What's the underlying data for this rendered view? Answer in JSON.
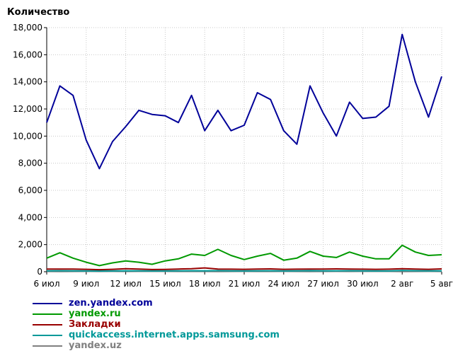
{
  "chart_data": {
    "type": "line",
    "ylabel": "Количество",
    "ylim": [
      0,
      18000
    ],
    "yticks": [
      0,
      2000,
      4000,
      6000,
      8000,
      10000,
      12000,
      14000,
      16000,
      18000
    ],
    "ytick_labels": [
      "0",
      "2,000",
      "4,000",
      "6,000",
      "8,000",
      "10,000",
      "12,000",
      "14,000",
      "16,000",
      "18,000"
    ],
    "x": [
      "6 июл",
      "7 июл",
      "8 июл",
      "9 июл",
      "10 июл",
      "11 июл",
      "12 июл",
      "13 июл",
      "14 июл",
      "15 июл",
      "16 июл",
      "17 июл",
      "18 июл",
      "19 июл",
      "20 июл",
      "21 июл",
      "22 июл",
      "23 июл",
      "24 июл",
      "25 июл",
      "26 июл",
      "27 июл",
      "28 июл",
      "29 июл",
      "30 июл",
      "31 июл",
      "1 авг",
      "2 авг",
      "3 авг",
      "4 авг",
      "5 авг"
    ],
    "xtick_labels": [
      {
        "index": 0,
        "label": "6 июл"
      },
      {
        "index": 3,
        "label": "9 июл"
      },
      {
        "index": 6,
        "label": "12 июл"
      },
      {
        "index": 9,
        "label": "15 июл"
      },
      {
        "index": 12,
        "label": "18 июл"
      },
      {
        "index": 15,
        "label": "21 июл"
      },
      {
        "index": 18,
        "label": "24 июл"
      },
      {
        "index": 21,
        "label": "27 июл"
      },
      {
        "index": 24,
        "label": "30 июл"
      },
      {
        "index": 27,
        "label": "2 авг"
      },
      {
        "index": 30,
        "label": "5 авг"
      }
    ],
    "grid": true,
    "legend_position": "bottom-left",
    "series": [
      {
        "name": "zen.yandex.com",
        "color": "#000099",
        "values": [
          11000,
          13700,
          13000,
          9700,
          7600,
          9600,
          10700,
          11900,
          11600,
          11500,
          11000,
          13000,
          10400,
          11900,
          10400,
          10800,
          13200,
          12700,
          10400,
          9400,
          13700,
          11700,
          10000,
          12500,
          11300,
          11400,
          12200,
          17500,
          14000,
          11400,
          14400
        ]
      },
      {
        "name": "yandex.ru",
        "color": "#009900",
        "values": [
          1000,
          1400,
          1000,
          700,
          450,
          650,
          800,
          700,
          550,
          800,
          950,
          1300,
          1200,
          1650,
          1200,
          900,
          1150,
          1350,
          850,
          1000,
          1500,
          1150,
          1050,
          1450,
          1150,
          950,
          950,
          1950,
          1450,
          1200,
          1250
        ]
      },
      {
        "name": "Закладки",
        "color": "#990000",
        "values": [
          200,
          200,
          200,
          180,
          150,
          180,
          220,
          200,
          160,
          170,
          200,
          220,
          280,
          200,
          190,
          180,
          200,
          210,
          180,
          190,
          200,
          200,
          210,
          200,
          190,
          180,
          190,
          220,
          200,
          180,
          210
        ]
      },
      {
        "name": "quickaccess.internet.apps.samsung.com",
        "color": "#009999",
        "values": [
          70,
          75,
          70,
          60,
          50,
          60,
          70,
          65,
          55,
          60,
          65,
          75,
          70,
          80,
          70,
          60,
          70,
          75,
          60,
          65,
          80,
          70,
          65,
          75,
          65,
          60,
          60,
          90,
          75,
          65,
          70
        ]
      },
      {
        "name": "yandex.uz",
        "color": "#808080",
        "values": [
          30,
          35,
          30,
          25,
          20,
          25,
          30,
          28,
          25,
          28,
          30,
          32,
          30,
          35,
          30,
          28,
          30,
          32,
          28,
          30,
          35,
          30,
          28,
          32,
          28,
          26,
          26,
          38,
          32,
          28,
          30
        ]
      }
    ]
  }
}
